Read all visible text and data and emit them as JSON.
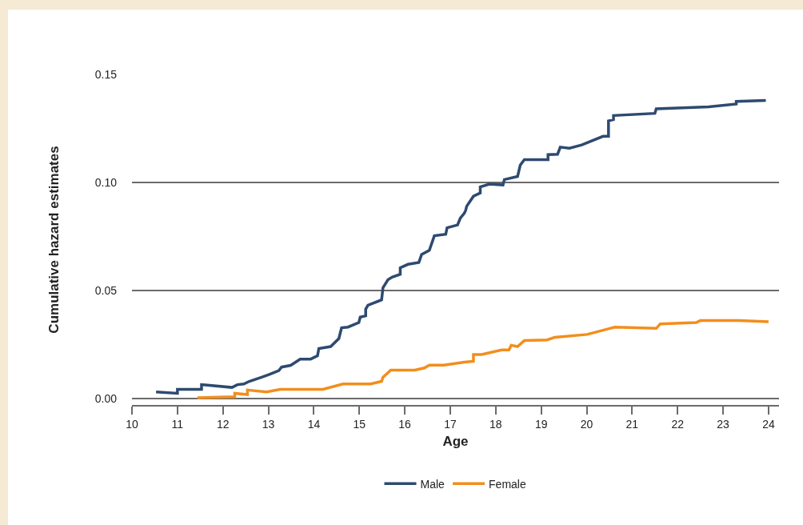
{
  "chart_data": {
    "type": "line",
    "xlabel": "Age",
    "ylabel": "Cumulative hazard estimates",
    "xlim": [
      10,
      24.23
    ],
    "xticks": [
      10,
      11,
      12,
      13,
      14,
      15,
      16,
      17,
      18,
      19,
      20,
      21,
      22,
      23,
      24
    ],
    "ylim": [
      -0.0028,
      0.15
    ],
    "yticks": [
      {
        "value": 0,
        "label": "0.00"
      },
      {
        "value": 0.05,
        "label": "0.05"
      },
      {
        "value": 0.1,
        "label": "0.10"
      },
      0.15
    ],
    "grid": "y",
    "legend": "bottom",
    "line_style": "solid",
    "marker": "none",
    "series": [
      {
        "name": "Male",
        "color": "#2e4a70",
        "x": [
          10.53,
          11.0,
          11.0,
          11.53,
          11.53,
          12.2,
          12.32,
          12.46,
          12.58,
          12.85,
          13.02,
          13.23,
          13.29,
          13.49,
          13.7,
          13.93,
          14.08,
          14.11,
          14.37,
          14.55,
          14.61,
          14.75,
          14.99,
          15.02,
          15.14,
          15.14,
          15.19,
          15.49,
          15.52,
          15.63,
          15.72,
          15.9,
          15.9,
          16.07,
          16.31,
          16.37,
          16.54,
          16.65,
          16.9,
          16.93,
          17.16,
          17.22,
          17.31,
          17.34,
          17.36,
          17.51,
          17.66,
          17.66,
          17.86,
          18.16,
          18.19,
          18.48,
          18.54,
          18.63,
          19.15,
          19.15,
          19.36,
          19.42,
          19.62,
          19.89,
          20.36,
          20.48,
          20.48,
          20.59,
          20.59,
          21.5,
          21.53,
          22.68,
          23.29,
          23.29,
          23.94
        ],
        "values": [
          0.0032,
          0.0026,
          0.0044,
          0.0044,
          0.0066,
          0.0053,
          0.0066,
          0.0069,
          0.0081,
          0.01,
          0.0113,
          0.0131,
          0.0147,
          0.0155,
          0.0184,
          0.0184,
          0.0199,
          0.0233,
          0.0242,
          0.0279,
          0.0329,
          0.0332,
          0.0353,
          0.0378,
          0.0384,
          0.0415,
          0.0433,
          0.0458,
          0.0514,
          0.0551,
          0.0563,
          0.0576,
          0.0606,
          0.0622,
          0.0631,
          0.0668,
          0.0687,
          0.0754,
          0.0761,
          0.0791,
          0.0804,
          0.0835,
          0.0859,
          0.0872,
          0.089,
          0.0937,
          0.0952,
          0.098,
          0.0993,
          0.0989,
          0.1014,
          0.1028,
          0.1081,
          0.1106,
          0.1106,
          0.1129,
          0.1131,
          0.1164,
          0.1159,
          0.1174,
          0.1214,
          0.1214,
          0.1285,
          0.1291,
          0.131,
          0.132,
          0.1341,
          0.135,
          0.1363,
          0.1375,
          0.138
        ]
      },
      {
        "name": "Female",
        "color": "#f28e1c",
        "x": [
          11.44,
          12.26,
          12.26,
          12.54,
          12.54,
          12.96,
          13.26,
          14.2,
          14.64,
          15.25,
          15.49,
          15.52,
          15.69,
          16.22,
          16.43,
          16.54,
          16.86,
          17.31,
          17.51,
          17.51,
          17.69,
          18.13,
          18.29,
          18.34,
          18.48,
          18.63,
          19.13,
          19.3,
          20.01,
          20.62,
          21.53,
          21.62,
          22.41,
          22.5,
          23.35,
          24.0
        ],
        "values": [
          0.0005,
          0.001,
          0.0026,
          0.002,
          0.0041,
          0.0032,
          0.0044,
          0.0044,
          0.0069,
          0.0069,
          0.0081,
          0.01,
          0.0133,
          0.0133,
          0.0143,
          0.0156,
          0.0156,
          0.017,
          0.0174,
          0.0205,
          0.0205,
          0.0226,
          0.0226,
          0.0248,
          0.0242,
          0.027,
          0.0273,
          0.0285,
          0.0298,
          0.0332,
          0.0326,
          0.0347,
          0.0353,
          0.0362,
          0.0362,
          0.0357
        ]
      }
    ]
  }
}
